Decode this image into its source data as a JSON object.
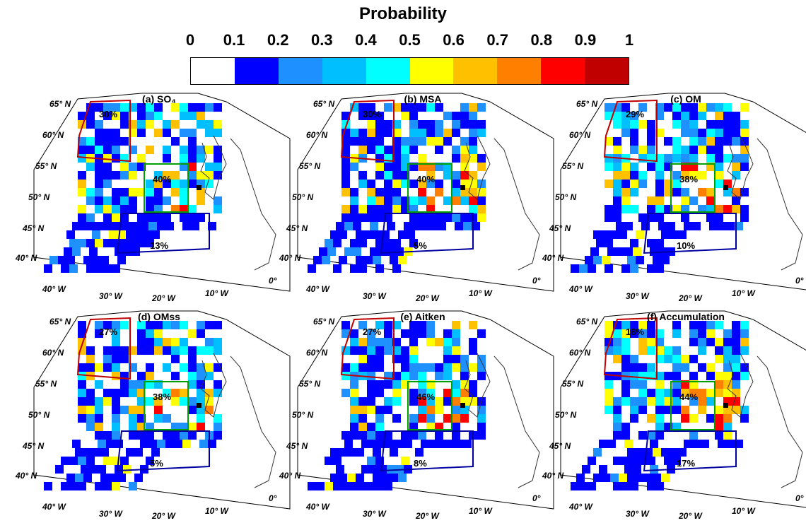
{
  "colorbar": {
    "title": "Probability",
    "ticks": [
      "0",
      "0.1",
      "0.2",
      "0.3",
      "0.4",
      "0.5",
      "0.6",
      "0.7",
      "0.8",
      "0.9",
      "1"
    ],
    "colors": [
      "#ffffff",
      "#0000ff",
      "#1e90ff",
      "#00bfff",
      "#00ffff",
      "#ffff00",
      "#ffc000",
      "#ff8000",
      "#ff0000",
      "#c00000"
    ]
  },
  "axis_labels": {
    "lat": [
      "65° N",
      "60° N",
      "55° N",
      "50° N",
      "45° N",
      "40° N"
    ],
    "lon": [
      "40° W",
      "30° W",
      "20° W",
      "10° W",
      "0°"
    ]
  },
  "panels": [
    {
      "title": "(a) SO₄",
      "red_pct": "30%",
      "green_pct": "40%",
      "blue_pct": "13%"
    },
    {
      "title": "(b) MSA",
      "red_pct": "30%",
      "green_pct": "40%",
      "blue_pct": "5%"
    },
    {
      "title": "(c) OM",
      "red_pct": "29%",
      "green_pct": "38%",
      "blue_pct": "10%"
    },
    {
      "title": "(d) OMss",
      "red_pct": "27%",
      "green_pct": "38%",
      "blue_pct": "5%"
    },
    {
      "title": "(e) Aitken",
      "red_pct": "27%",
      "green_pct": "46%",
      "blue_pct": "8%"
    },
    {
      "title": "(f) Accumulation",
      "red_pct": "18%",
      "green_pct": "44%",
      "blue_pct": "17%"
    }
  ]
}
